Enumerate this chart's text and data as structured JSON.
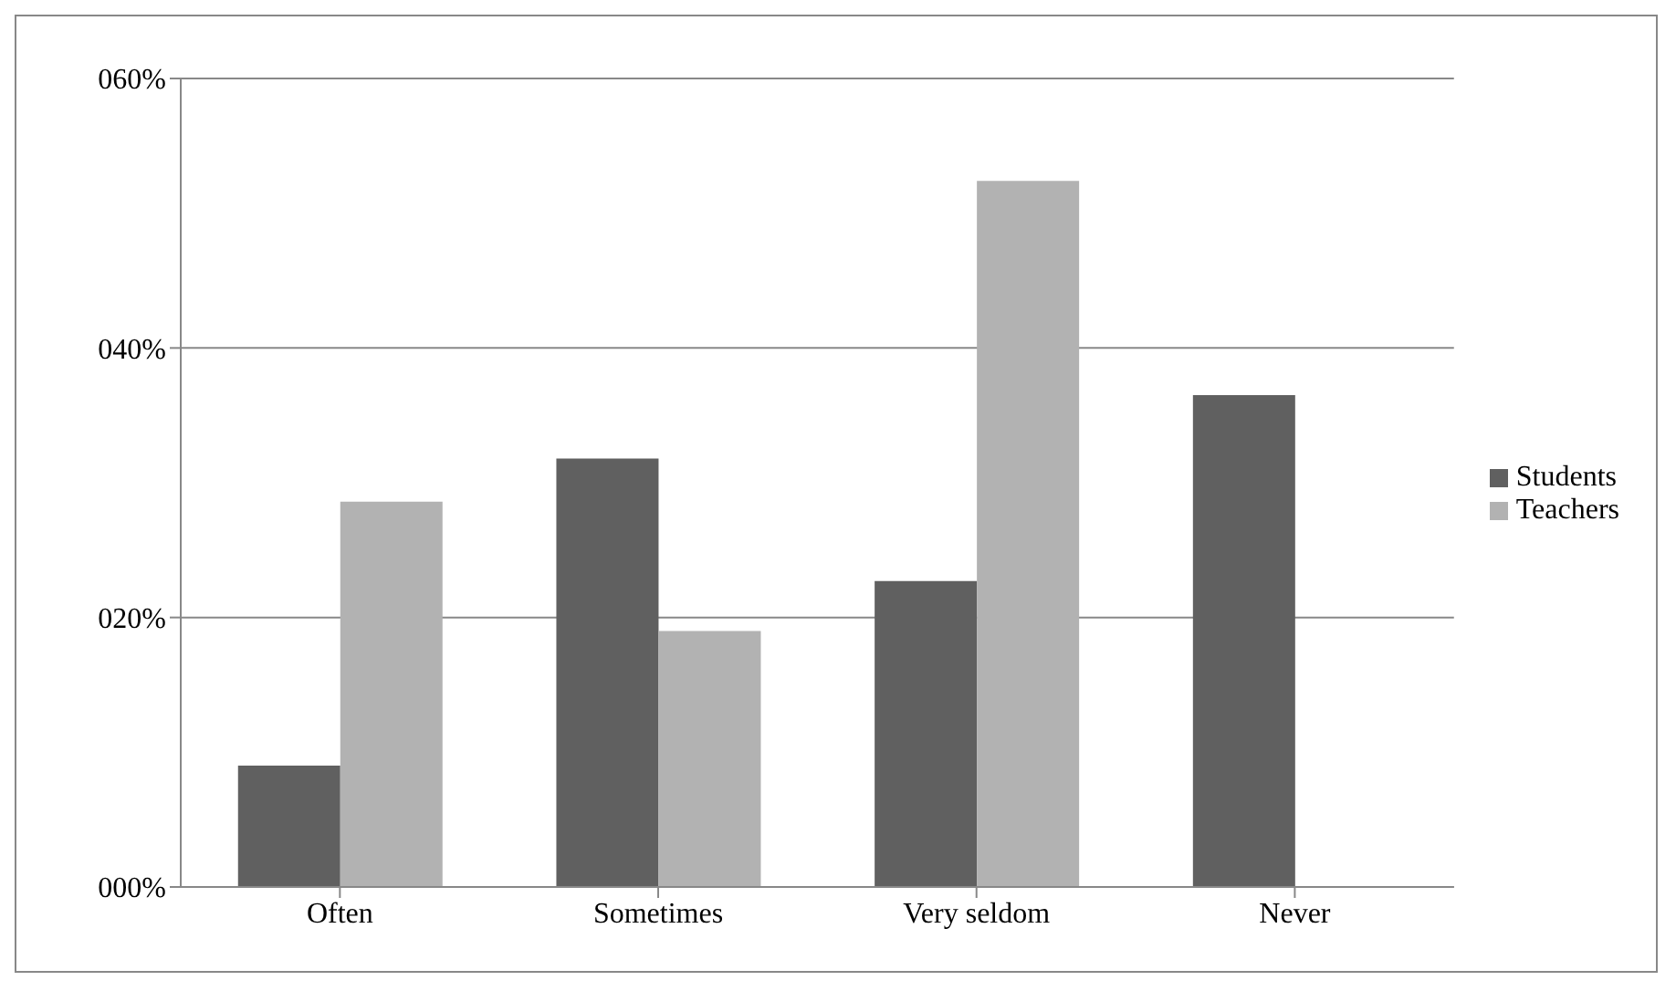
{
  "chart_data": {
    "type": "bar",
    "categories": [
      "Often",
      "Sometimes",
      "Very seldom",
      "Never"
    ],
    "series": [
      {
        "name": "Students",
        "color": "#606060",
        "values": [
          9.0,
          31.8,
          22.7,
          36.5
        ]
      },
      {
        "name": "Teachers",
        "color": "#b2b2b2",
        "values": [
          28.6,
          19.0,
          52.4,
          0
        ]
      }
    ],
    "ylim": [
      0,
      60
    ],
    "yticks": [
      {
        "value": 0,
        "label": "000%"
      },
      {
        "value": 20,
        "label": "020%"
      },
      {
        "value": 40,
        "label": "040%"
      },
      {
        "value": 60,
        "label": "060%"
      }
    ],
    "grid": "y",
    "legend": "right"
  }
}
